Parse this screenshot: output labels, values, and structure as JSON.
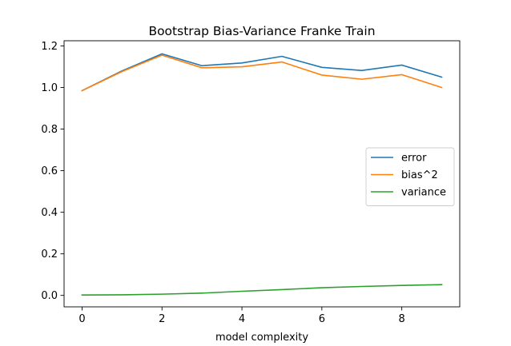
{
  "chart_data": {
    "type": "line",
    "title": "Bootstrap Bias-Variance Franke Train",
    "xlabel": "model complexity",
    "ylabel": "",
    "x": [
      0,
      1,
      2,
      3,
      4,
      5,
      6,
      7,
      8,
      9
    ],
    "xlim": [
      -0.45,
      9.45
    ],
    "ylim": [
      -0.055,
      1.225
    ],
    "xticks": [
      0,
      2,
      4,
      6,
      8
    ],
    "xtick_labels": [
      "0",
      "2",
      "4",
      "6",
      "8"
    ],
    "yticks": [
      0.0,
      0.2,
      0.4,
      0.6,
      0.8,
      1.0,
      1.2
    ],
    "ytick_labels": [
      "0.0",
      "0.2",
      "0.4",
      "0.6",
      "0.8",
      "1.0",
      "1.2"
    ],
    "grid": false,
    "legend_position": "center-right",
    "series": [
      {
        "name": "error",
        "color": "#1f77b4",
        "values": [
          0.985,
          1.08,
          1.162,
          1.105,
          1.118,
          1.15,
          1.097,
          1.082,
          1.108,
          1.05
        ]
      },
      {
        "name": "bias^2",
        "color": "#ff7f0e",
        "values": [
          0.985,
          1.077,
          1.156,
          1.095,
          1.1,
          1.123,
          1.06,
          1.04,
          1.062,
          1.0
        ]
      },
      {
        "name": "variance",
        "color": "#2ca02c",
        "values": [
          0.002,
          0.003,
          0.006,
          0.011,
          0.02,
          0.028,
          0.037,
          0.043,
          0.048,
          0.052
        ]
      }
    ]
  }
}
